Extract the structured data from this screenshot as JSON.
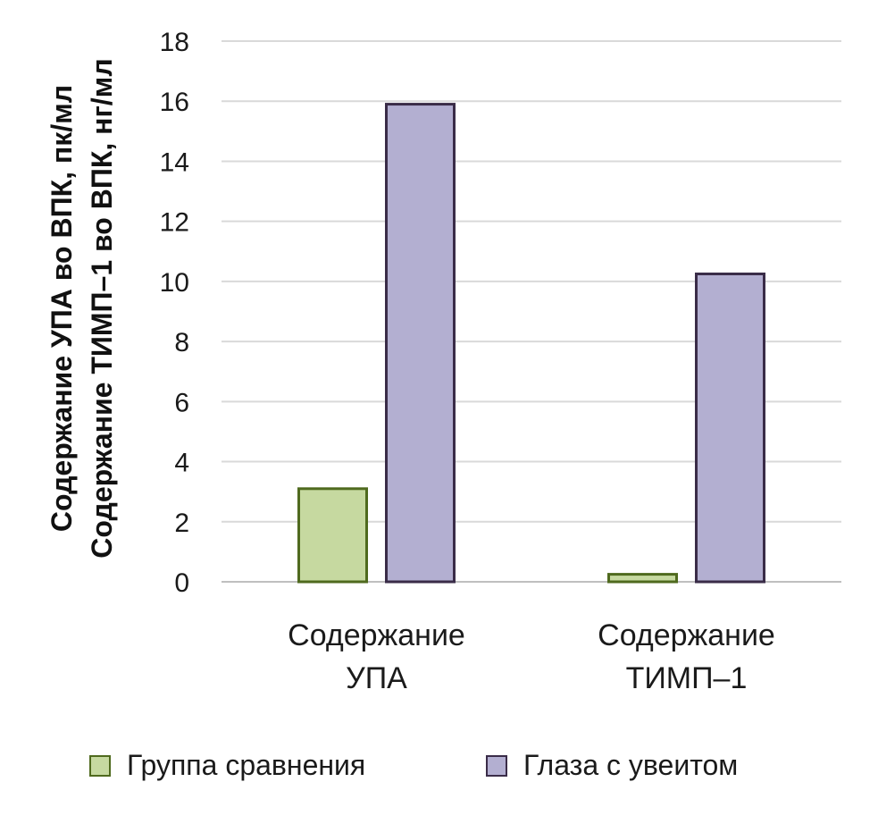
{
  "chart_data": {
    "type": "bar",
    "categories": [
      [
        "Содержание",
        "УПА"
      ],
      [
        "Содержание",
        "ТИМП–1"
      ]
    ],
    "series": [
      {
        "name": "Группа сравнения",
        "values": [
          3.1,
          0.25
        ],
        "color": "#c6d9a0",
        "stroke": "#4f6a1e"
      },
      {
        "name": "Глаза с увеитом",
        "values": [
          15.9,
          10.25
        ],
        "color": "#b3afd1",
        "stroke": "#3a2c48"
      }
    ],
    "ylabel": [
      "Содержание УПА во ВПК, пк/мл",
      "Содержание ТИМП–1 во ВПК, нг/мл"
    ],
    "ylim": [
      0,
      18
    ],
    "yticks": [
      0,
      2,
      4,
      6,
      8,
      10,
      12,
      14,
      16,
      18
    ],
    "grid": true,
    "legend_position": "bottom"
  }
}
